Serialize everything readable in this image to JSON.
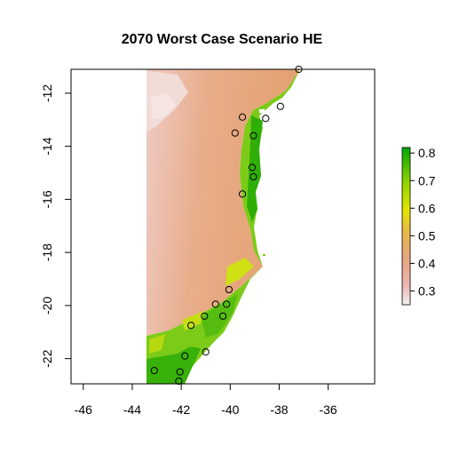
{
  "chart_data": {
    "type": "heatmap",
    "title": "2070 Worst Case Scenario HE",
    "xlabel": "",
    "ylabel": "",
    "xlim": [
      -46.5,
      -34.1
    ],
    "ylim": [
      -22.95,
      -11.1
    ],
    "x_ticks": [
      -46,
      -44,
      -42,
      -40,
      -38,
      -36
    ],
    "x_tick_labels": [
      "-46",
      "-44",
      "-42",
      "-40",
      "-38",
      "-36"
    ],
    "y_ticks": [
      -12,
      -14,
      -16,
      -18,
      -20,
      -22
    ],
    "y_tick_labels": [
      "-12",
      "-14",
      "-16",
      "-18",
      "-20",
      "-22"
    ],
    "colorbar": {
      "range": [
        0.25,
        0.82
      ],
      "ticks": [
        0.3,
        0.4,
        0.5,
        0.6,
        0.7,
        0.8
      ],
      "tick_labels": [
        "0.3",
        "0.4",
        "0.5",
        "0.6",
        "0.7",
        "0.8"
      ],
      "colors": [
        "#f2f2f2",
        "#ebb6b2",
        "#e6a57e",
        "#e8bd44",
        "#e6e600",
        "#8fd400",
        "#00a600"
      ]
    },
    "occurrence_points": [
      {
        "lon": -37.2,
        "lat": -11.1
      },
      {
        "lon": -37.95,
        "lat": -12.5
      },
      {
        "lon": -39.5,
        "lat": -12.9
      },
      {
        "lon": -38.55,
        "lat": -12.95
      },
      {
        "lon": -39.8,
        "lat": -13.5
      },
      {
        "lon": -39.05,
        "lat": -13.6
      },
      {
        "lon": -39.1,
        "lat": -14.8
      },
      {
        "lon": -39.05,
        "lat": -15.15
      },
      {
        "lon": -39.5,
        "lat": -15.8
      },
      {
        "lon": -40.05,
        "lat": -19.4
      },
      {
        "lon": -40.6,
        "lat": -19.95
      },
      {
        "lon": -40.15,
        "lat": -19.95
      },
      {
        "lon": -41.05,
        "lat": -20.4
      },
      {
        "lon": -40.3,
        "lat": -20.4
      },
      {
        "lon": -41.6,
        "lat": -20.75
      },
      {
        "lon": -41.0,
        "lat": -21.75
      },
      {
        "lon": -41.85,
        "lat": -21.9
      },
      {
        "lon": -43.1,
        "lat": -22.45
      },
      {
        "lon": -42.05,
        "lat": -22.5
      },
      {
        "lon": -42.1,
        "lat": -22.85
      }
    ]
  }
}
